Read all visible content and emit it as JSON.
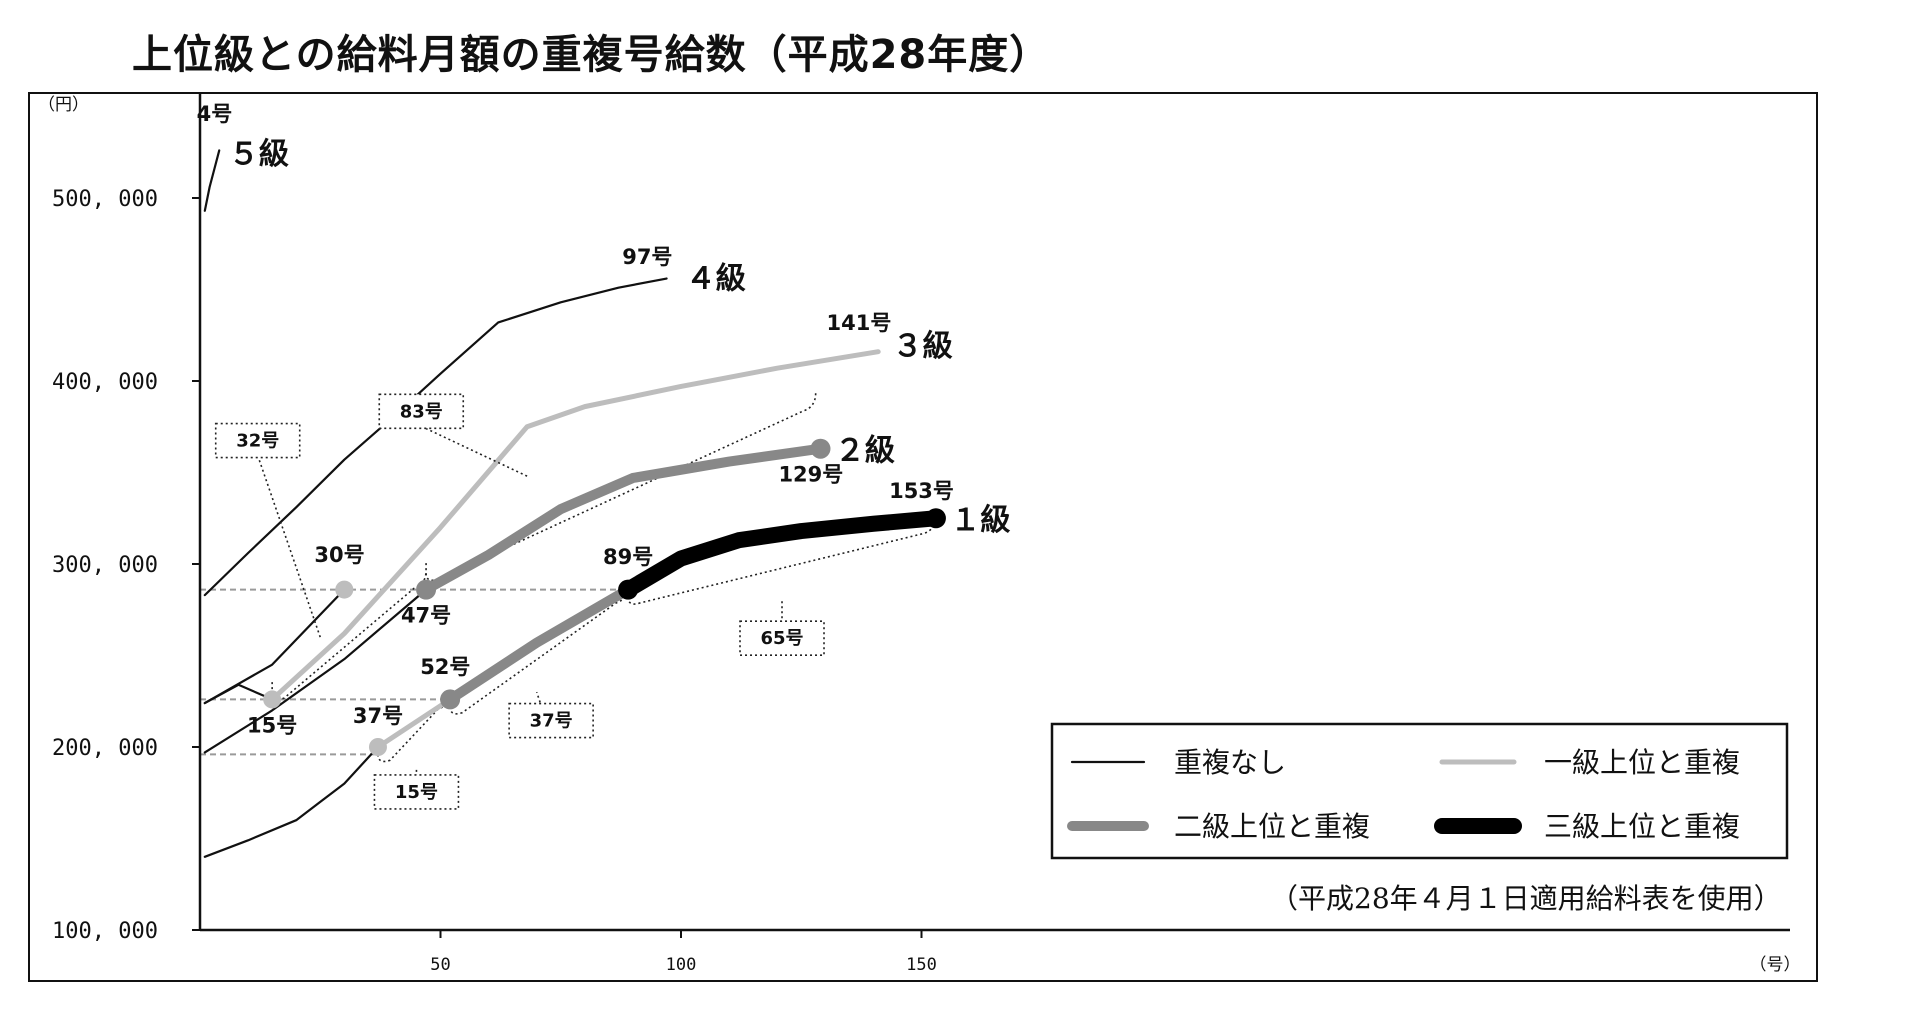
{
  "title": "上位級との給料月額の重複号給数（平成28年度）",
  "note": "（平成28年４月１日適用給料表を使用）",
  "colors": {
    "no_overlap": "#111111",
    "one_grade": "#bdbdbd",
    "two_grade": "#888888",
    "three_grade": "#000000"
  },
  "chart_data": {
    "type": "line",
    "y_unit": "（円）",
    "x_unit": "（号）",
    "ylim": [
      100000,
      500000
    ],
    "xlim": [
      0,
      150
    ],
    "yticks": [
      {
        "value": 100000,
        "label": "100, 000"
      },
      {
        "value": 200000,
        "label": "200, 000"
      },
      {
        "value": 300000,
        "label": "300, 000"
      },
      {
        "value": 400000,
        "label": "400, 000"
      },
      {
        "value": 500000,
        "label": "500, 000"
      }
    ],
    "xticks": [
      {
        "value": 50,
        "label": "50"
      },
      {
        "value": 100,
        "label": "100"
      },
      {
        "value": 150,
        "label": "150"
      }
    ],
    "series": [
      {
        "grade": "１級",
        "segments": [
          {
            "style": "no_overlap",
            "points": [
              [
                1,
                140000
              ],
              [
                10,
                149000
              ],
              [
                20,
                160000
              ],
              [
                25,
                170000
              ],
              [
                30,
                180000
              ],
              [
                37,
                200000
              ]
            ]
          },
          {
            "style": "one_grade",
            "points": [
              [
                37,
                200000
              ],
              [
                52,
                226000
              ]
            ]
          },
          {
            "style": "two_grade",
            "points": [
              [
                52,
                226000
              ],
              [
                70,
                257000
              ],
              [
                89,
                286000
              ]
            ]
          },
          {
            "style": "three_grade",
            "points": [
              [
                89,
                286000
              ],
              [
                100,
                303000
              ],
              [
                112,
                313000
              ],
              [
                125,
                318000
              ],
              [
                140,
                322000
              ],
              [
                153,
                325000
              ]
            ]
          }
        ]
      },
      {
        "grade": "２級",
        "segments": [
          {
            "style": "no_overlap",
            "points": [
              [
                1,
                197000
              ],
              [
                15,
                220000
              ],
              [
                30,
                248000
              ],
              [
                47,
                286000
              ]
            ]
          },
          {
            "style": "two_grade",
            "points": [
              [
                47,
                286000
              ],
              [
                60,
                305000
              ],
              [
                75,
                330000
              ],
              [
                90,
                347000
              ],
              [
                110,
                356000
              ],
              [
                129,
                363000
              ]
            ]
          }
        ]
      },
      {
        "grade": "３級",
        "segments": [
          {
            "style": "no_overlap",
            "points": [
              [
                1,
                224000
              ],
              [
                8,
                234000
              ],
              [
                15,
                226000
              ]
            ]
          },
          {
            "style": "no_overlap",
            "points": [
              [
                1,
                224000
              ],
              [
                15,
                245000
              ],
              [
                30,
                286000
              ]
            ]
          },
          {
            "style": "one_grade",
            "points": [
              [
                15,
                226000
              ],
              [
                30,
                262000
              ],
              [
                50,
                320000
              ],
              [
                68,
                375000
              ],
              [
                80,
                386000
              ],
              [
                100,
                397000
              ],
              [
                120,
                407000
              ],
              [
                141,
                416000
              ]
            ]
          }
        ]
      },
      {
        "grade": "４級",
        "segments": [
          {
            "style": "no_overlap",
            "points": [
              [
                1,
                283000
              ],
              [
                10,
                306000
              ],
              [
                20,
                331000
              ],
              [
                30,
                357000
              ],
              [
                40,
                380000
              ],
              [
                50,
                404000
              ],
              [
                62,
                432000
              ],
              [
                75,
                443000
              ],
              [
                87,
                451000
              ],
              [
                97,
                456000
              ]
            ]
          }
        ]
      },
      {
        "grade": "５級",
        "segments": [
          {
            "style": "no_overlap",
            "points": [
              [
                1,
                493000
              ],
              [
                2,
                506000
              ],
              [
                3,
                516000
              ],
              [
                4,
                526000
              ]
            ]
          }
        ]
      }
    ],
    "grade_labels": [
      {
        "text": "５級",
        "x": 6,
        "y": 524000
      },
      {
        "text": "４級",
        "x": 101,
        "y": 456000
      },
      {
        "text": "３級",
        "x": 144,
        "y": 419000
      },
      {
        "text": "２級",
        "x": 132,
        "y": 362000
      },
      {
        "text": "１級",
        "x": 156,
        "y": 324000
      }
    ],
    "point_labels": [
      {
        "text": "4号",
        "x": 3,
        "y": 542000
      },
      {
        "text": "97号",
        "x": 93,
        "y": 464000
      },
      {
        "text": "141号",
        "x": 137,
        "y": 428000
      },
      {
        "text": "129号",
        "x": 127,
        "y": 345000
      },
      {
        "text": "153号",
        "x": 150,
        "y": 336000
      },
      {
        "text": "30号",
        "x": 29,
        "y": 301000
      },
      {
        "text": "47号",
        "x": 47,
        "y": 268000
      },
      {
        "text": "89号",
        "x": 89,
        "y": 300000
      },
      {
        "text": "15号",
        "x": 15,
        "y": 208000
      },
      {
        "text": "52号",
        "x": 51,
        "y": 240000
      },
      {
        "text": "37号",
        "x": 37,
        "y": 213000
      }
    ],
    "markers": [
      {
        "x": 30,
        "y": 286000,
        "style": "one_grade"
      },
      {
        "x": 15,
        "y": 226000,
        "style": "one_grade"
      },
      {
        "x": 37,
        "y": 200000,
        "style": "one_grade"
      },
      {
        "x": 47,
        "y": 286000,
        "style": "two_grade"
      },
      {
        "x": 52,
        "y": 226000,
        "style": "two_grade"
      },
      {
        "x": 129,
        "y": 363000,
        "style": "two_grade"
      },
      {
        "x": 89,
        "y": 286000,
        "style": "three_grade"
      },
      {
        "x": 153,
        "y": 325000,
        "style": "three_grade"
      }
    ],
    "reference_lines": [
      {
        "y": 286000,
        "x_from": 0,
        "x_to": 89
      },
      {
        "y": 226000,
        "x_from": 0,
        "x_to": 52
      },
      {
        "y": 196000,
        "x_from": 0,
        "x_to": 37
      }
    ],
    "overlap_annotations": [
      {
        "text": "83号",
        "box": [
          46,
          384000
        ],
        "pointer": [
          68,
          348000
        ]
      },
      {
        "text": "32号",
        "box": [
          12,
          368000
        ],
        "pointer": [
          25,
          260000
        ]
      },
      {
        "text": "65号",
        "box": [
          121,
          260000
        ],
        "pointer": [
          121,
          280000
        ]
      },
      {
        "text": "37号",
        "box": [
          73,
          215000
        ],
        "pointer": [
          70,
          230000
        ]
      },
      {
        "text": "15号",
        "box": [
          45,
          176000
        ],
        "pointer": [
          45,
          188000
        ]
      }
    ],
    "brackets": [
      {
        "from": [
          47,
          295000
        ],
        "to": [
          128,
          387000
        ]
      },
      {
        "from": [
          15,
          230000
        ],
        "to": [
          47,
          290000
        ]
      },
      {
        "from": [
          37,
          196000
        ],
        "to": [
          52,
          224000
        ]
      },
      {
        "from": [
          52,
          222000
        ],
        "to": [
          89,
          282000
        ]
      },
      {
        "from": [
          89,
          282000
        ],
        "to": [
          153,
          320000
        ]
      }
    ],
    "legend": {
      "placement": "bottom-right",
      "items": [
        {
          "label": "重複なし",
          "style": "no_overlap"
        },
        {
          "label": "一級上位と重複",
          "style": "one_grade"
        },
        {
          "label": "二級上位と重複",
          "style": "two_grade"
        },
        {
          "label": "三級上位と重複",
          "style": "three_grade"
        }
      ]
    }
  }
}
